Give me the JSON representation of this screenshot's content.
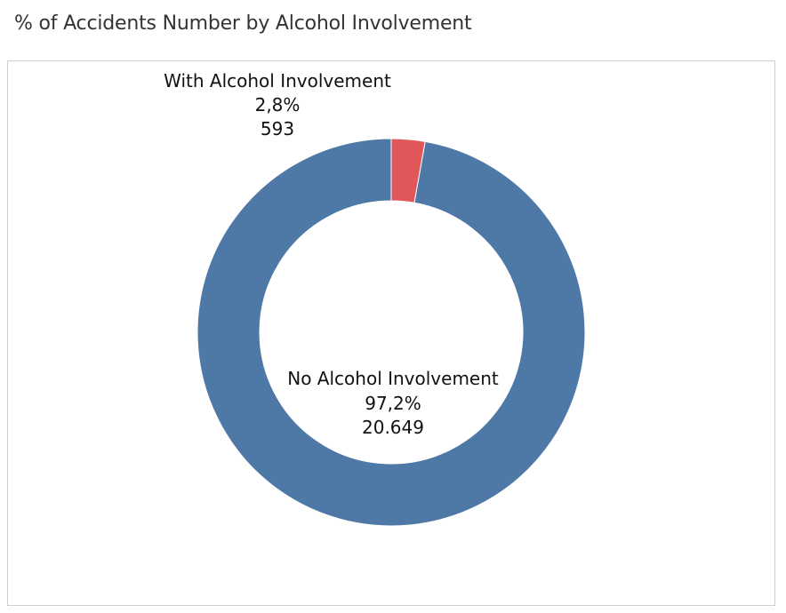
{
  "page": {
    "title": "% of Accidents Number by Alcohol Involvement"
  },
  "chart_data": {
    "type": "pie",
    "subtype": "donut",
    "title": "% of Accidents Number by Alcohol Involvement",
    "slices": [
      {
        "name": "No Alcohol Involvement",
        "percent": 97.2,
        "percent_label": "97,2%",
        "value": 20649,
        "value_label": "20.649",
        "color": "#4e79a7"
      },
      {
        "name": "With Alcohol Involvement",
        "percent": 2.8,
        "percent_label": "2,8%",
        "value": 593,
        "value_label": "593",
        "color": "#e15759"
      }
    ]
  }
}
